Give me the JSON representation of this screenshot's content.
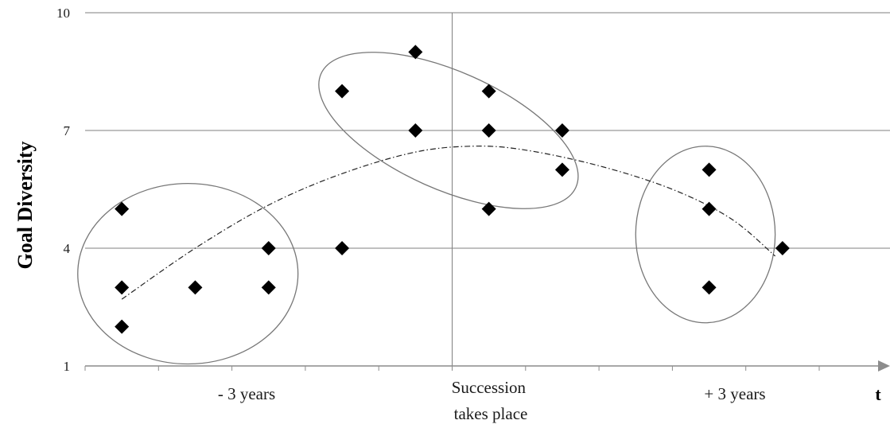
{
  "chart_data": {
    "type": "scatter",
    "ylabel": "Goal Diversity",
    "xlabel": "t",
    "ylim": [
      1,
      10
    ],
    "yticks": [
      1,
      4,
      7,
      10
    ],
    "x_period_labels": [
      {
        "id": "before",
        "text": "- 3 years"
      },
      {
        "id": "succession",
        "lines": [
          "Succession",
          "takes place"
        ]
      },
      {
        "id": "after",
        "text": "+ 3 years"
      }
    ],
    "xlim": [
      0,
      10
    ],
    "x_tick_positions": [
      0,
      1,
      2,
      3,
      4,
      5,
      6,
      7,
      8,
      9,
      10
    ],
    "succession_x": 5,
    "grid": {
      "horizontal": true,
      "vertical_at_succession": true
    },
    "points": [
      {
        "x": 0.5,
        "y": 5
      },
      {
        "x": 0.5,
        "y": 3
      },
      {
        "x": 0.5,
        "y": 2
      },
      {
        "x": 1.5,
        "y": 3
      },
      {
        "x": 2.5,
        "y": 4
      },
      {
        "x": 2.5,
        "y": 3
      },
      {
        "x": 3.5,
        "y": 8
      },
      {
        "x": 3.5,
        "y": 4
      },
      {
        "x": 4.5,
        "y": 9
      },
      {
        "x": 4.5,
        "y": 7
      },
      {
        "x": 5.5,
        "y": 8
      },
      {
        "x": 5.5,
        "y": 7
      },
      {
        "x": 5.5,
        "y": 5
      },
      {
        "x": 6.5,
        "y": 7
      },
      {
        "x": 6.5,
        "y": 6
      },
      {
        "x": 8.5,
        "y": 6
      },
      {
        "x": 8.5,
        "y": 5
      },
      {
        "x": 8.5,
        "y": 3
      },
      {
        "x": 9.5,
        "y": 4
      }
    ],
    "trendline": {
      "style": "dash-dot",
      "points": [
        {
          "x": 0.5,
          "y": 2.7
        },
        {
          "x": 1.5,
          "y": 4.0
        },
        {
          "x": 2.5,
          "y": 5.1
        },
        {
          "x": 3.5,
          "y": 5.9
        },
        {
          "x": 4.5,
          "y": 6.45
        },
        {
          "x": 5.3,
          "y": 6.6
        },
        {
          "x": 6.0,
          "y": 6.5
        },
        {
          "x": 7.0,
          "y": 6.1
        },
        {
          "x": 8.0,
          "y": 5.5
        },
        {
          "x": 8.8,
          "y": 4.75
        },
        {
          "x": 9.4,
          "y": 3.8
        }
      ]
    },
    "groups": [
      {
        "id": "before",
        "cx": 1.4,
        "cy": 3.35,
        "rx": 1.5,
        "ry": 2.3,
        "rotation": 0
      },
      {
        "id": "around-succession",
        "cx": 4.95,
        "cy": 7.0,
        "rx": 1.9,
        "ry": 1.5,
        "rotation": 24
      },
      {
        "id": "after",
        "cx": 8.45,
        "cy": 4.35,
        "rx": 0.95,
        "ry": 2.25,
        "rotation": 0
      }
    ],
    "colors": {
      "points": "#000000",
      "grid": "#7f7f7f",
      "ellipse": "#777777",
      "trend": "#222222",
      "axis": "#8c8c8c"
    }
  }
}
